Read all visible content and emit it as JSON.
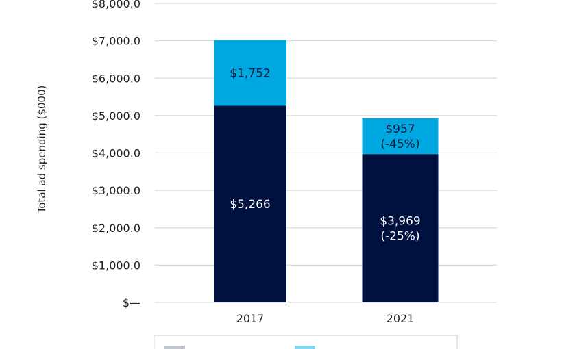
{
  "chart_data": {
    "type": "bar",
    "stacked": true,
    "title": "",
    "xlabel": "",
    "ylabel": "Total ad spending ($000)",
    "ylim": [
      0,
      8000
    ],
    "yticks": [
      0,
      1000,
      2000,
      3000,
      4000,
      5000,
      6000,
      7000,
      8000
    ],
    "ytick_labels": [
      "$—",
      "$1,000.0",
      "$2,000.0",
      "$3,000.0",
      "$4,000.0",
      "$5,000.0",
      "$6,000.0",
      "$7,000.0",
      "$8,000.0"
    ],
    "grid": true,
    "categories": [
      "2017",
      "2021"
    ],
    "series": [
      {
        "name": "",
        "color": "#00103f",
        "values": [
          5266,
          3969
        ],
        "labels": [
          "$5,266",
          "$3,969|(-25%)"
        ],
        "label_color": "#ffffff"
      },
      {
        "name": "",
        "color": "#00a8e1",
        "values": [
          1752,
          957
        ],
        "labels": [
          "$1,752",
          "$957|(-45%)"
        ],
        "label_color": "#0a1a3a"
      }
    ],
    "legend": "bottom"
  }
}
